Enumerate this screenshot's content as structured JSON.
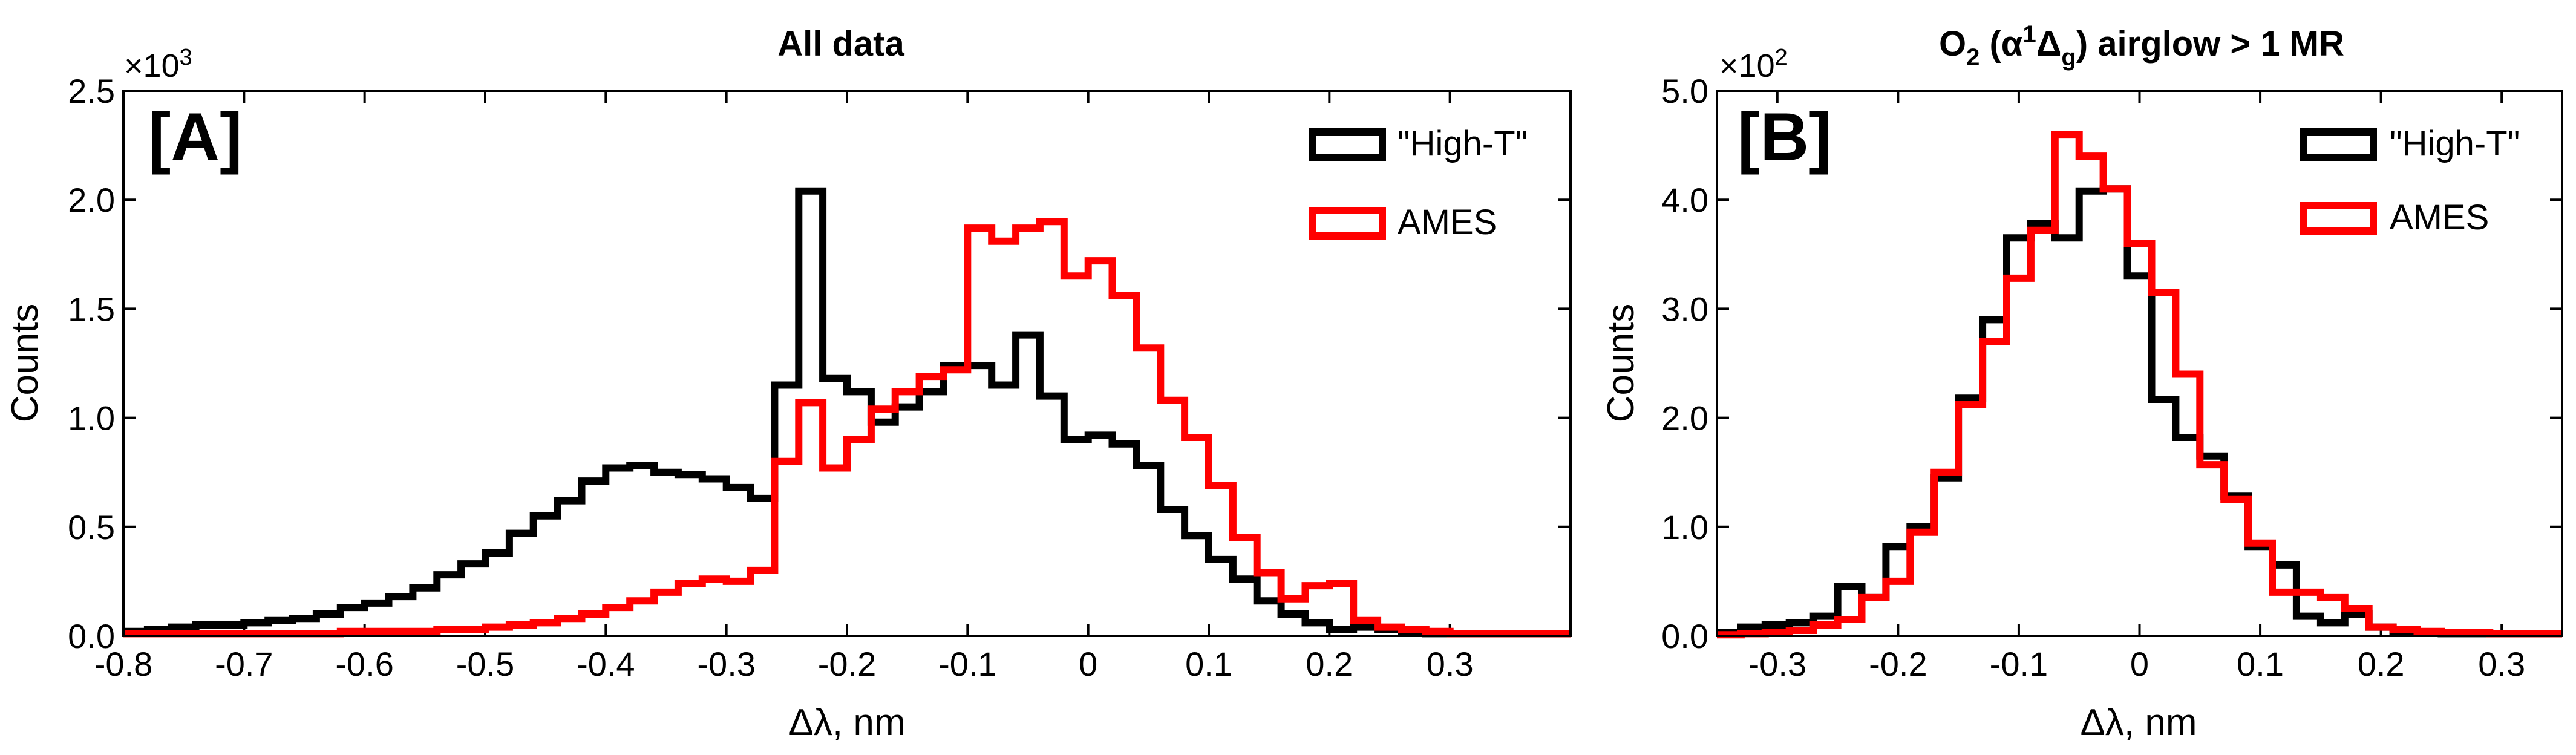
{
  "chart_data": [
    {
      "panel_label": "[A]",
      "type": "histogram",
      "title": "All data",
      "xlabel": "Δλ, nm",
      "ylabel": "Counts",
      "exponent_base": "×10",
      "exponent_power": "3",
      "xlim": [
        -0.8,
        0.4
      ],
      "ylim": [
        0,
        2.5
      ],
      "xticks": [
        -0.8,
        -0.7,
        -0.6,
        -0.5,
        -0.4,
        -0.3,
        -0.2,
        -0.1,
        0,
        0.1,
        0.2,
        0.3
      ],
      "xtick_labels": [
        "-0.8",
        "-0.7",
        "-0.6",
        "-0.5",
        "-0.4",
        "-0.3",
        "-0.2",
        "-0.1",
        "0",
        "0.1",
        "0.2",
        "0.3"
      ],
      "yticks": [
        0,
        0.5,
        1.0,
        1.5,
        2.0,
        2.5
      ],
      "ytick_labels": [
        "0.0",
        "0.5",
        "1.0",
        "1.5",
        "2.0",
        "2.5"
      ],
      "legend_position": "top-right",
      "bin_width": 0.02,
      "series": [
        {
          "name": "\"High-T\"",
          "color": "#000000",
          "bin_start": -0.8,
          "values": [
            0.02,
            0.03,
            0.04,
            0.05,
            0.05,
            0.06,
            0.07,
            0.08,
            0.1,
            0.13,
            0.15,
            0.18,
            0.22,
            0.28,
            0.33,
            0.38,
            0.47,
            0.55,
            0.62,
            0.71,
            0.77,
            0.78,
            0.75,
            0.74,
            0.72,
            0.68,
            0.63,
            1.15,
            2.04,
            1.18,
            1.12,
            0.98,
            1.05,
            1.12,
            1.24,
            1.24,
            1.15,
            1.38,
            1.1,
            0.9,
            0.92,
            0.88,
            0.78,
            0.58,
            0.46,
            0.35,
            0.26,
            0.16,
            0.1,
            0.06,
            0.03,
            0.04,
            0.03,
            0.02,
            0.01,
            0.01,
            0.01,
            0.01,
            0.01,
            0.01
          ]
        },
        {
          "name": "AMES",
          "color": "#ff0000",
          "bin_start": -0.8,
          "values": [
            0.01,
            0.01,
            0.01,
            0.01,
            0.01,
            0.01,
            0.01,
            0.01,
            0.01,
            0.02,
            0.02,
            0.02,
            0.02,
            0.03,
            0.03,
            0.04,
            0.05,
            0.06,
            0.08,
            0.1,
            0.13,
            0.16,
            0.2,
            0.24,
            0.26,
            0.25,
            0.3,
            0.8,
            1.07,
            0.77,
            0.9,
            1.04,
            1.12,
            1.19,
            1.22,
            1.87,
            1.81,
            1.87,
            1.9,
            1.65,
            1.72,
            1.56,
            1.32,
            1.08,
            0.91,
            0.69,
            0.45,
            0.29,
            0.17,
            0.23,
            0.24,
            0.07,
            0.04,
            0.03,
            0.02,
            0.01,
            0.01,
            0.01,
            0.01,
            0.01
          ]
        }
      ]
    },
    {
      "panel_label": "[B]",
      "type": "histogram",
      "title_main": "O",
      "title_sub": "2",
      "title_alpha": " (α",
      "title_sup": "1",
      "title_delta": "Δ",
      "title_sub_g": "g",
      "title_rest": ") airglow > 1 MR",
      "xlabel": "Δλ, nm",
      "ylabel": "Counts",
      "exponent_base": "×10",
      "exponent_power": "2",
      "xlim": [
        -0.35,
        0.35
      ],
      "ylim": [
        0,
        5.0
      ],
      "xticks": [
        -0.3,
        -0.2,
        -0.1,
        0,
        0.1,
        0.2,
        0.3
      ],
      "xtick_labels": [
        "-0.3",
        "-0.2",
        "-0.1",
        "0",
        "0.1",
        "0.2",
        "0.3"
      ],
      "yticks": [
        0,
        1.0,
        2.0,
        3.0,
        4.0,
        5.0
      ],
      "ytick_labels": [
        "0.0",
        "1.0",
        "2.0",
        "3.0",
        "4.0",
        "5.0"
      ],
      "legend_position": "top-right",
      "bin_width": 0.02,
      "series": [
        {
          "name": "\"High-T\"",
          "color": "#000000",
          "bin_start": -0.35,
          "values": [
            0.03,
            0.08,
            0.1,
            0.12,
            0.18,
            0.45,
            0.35,
            0.82,
            1.0,
            1.45,
            2.18,
            2.9,
            3.65,
            3.78,
            3.65,
            4.08,
            4.1,
            3.3,
            2.17,
            1.82,
            1.65,
            1.28,
            0.82,
            0.65,
            0.18,
            0.12,
            0.2,
            0.08,
            0.03,
            0.03,
            0.02,
            0.02,
            0.02,
            0.02,
            0.02
          ]
        },
        {
          "name": "AMES",
          "color": "#ff0000",
          "bin_start": -0.35,
          "values": [
            0.01,
            0.02,
            0.03,
            0.05,
            0.1,
            0.15,
            0.35,
            0.5,
            0.95,
            1.5,
            2.12,
            2.7,
            3.28,
            3.72,
            4.6,
            4.4,
            4.1,
            3.6,
            3.15,
            2.4,
            1.57,
            1.25,
            0.85,
            0.4,
            0.4,
            0.35,
            0.25,
            0.08,
            0.06,
            0.04,
            0.03,
            0.03,
            0.02,
            0.02,
            0.02
          ]
        }
      ]
    }
  ]
}
